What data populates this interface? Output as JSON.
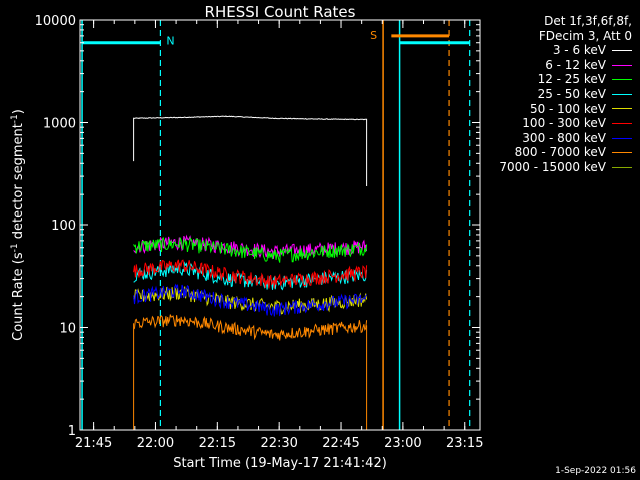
{
  "chart_data": {
    "type": "line",
    "title": "RHESSI Count Rates",
    "xlabel": "Start Time (19-May-17 21:41:42)",
    "ylabel_main": "Count Rate (s",
    "ylabel_sup1": "-1",
    "ylabel_mid": " detector segment",
    "ylabel_sup2": "-1",
    "ylabel_end": ")",
    "y_scale": "log",
    "ylim": [
      1,
      10000
    ],
    "yticks": [
      {
        "value": 1,
        "label": "1"
      },
      {
        "value": 10,
        "label": "10"
      },
      {
        "value": 100,
        "label": "100"
      },
      {
        "value": 1000,
        "label": "1000"
      },
      {
        "value": 10000,
        "label": "10000"
      }
    ],
    "xlim_minutes": [
      0,
      97
    ],
    "xticks": [
      {
        "minute": 3.3,
        "label": "21:45"
      },
      {
        "minute": 18.3,
        "label": "22:00"
      },
      {
        "minute": 33.3,
        "label": "22:15"
      },
      {
        "minute": 48.3,
        "label": "22:30"
      },
      {
        "minute": 63.3,
        "label": "22:45"
      },
      {
        "minute": 78.3,
        "label": "23:00"
      },
      {
        "minute": 93.3,
        "label": "23:15"
      }
    ],
    "data_range_minutes": [
      13,
      69.5
    ],
    "series": [
      {
        "name": "3 - 6 keV",
        "color": "#ffffff",
        "values": [
          1100,
          1120,
          1150,
          1100,
          1080,
          1070
        ]
      },
      {
        "name": "6 - 12 keV",
        "color": "#ff00ff",
        "values": [
          62,
          68,
          62,
          55,
          58,
          62
        ]
      },
      {
        "name": "12 - 25 keV",
        "color": "#00ff00",
        "values": [
          62,
          66,
          58,
          50,
          55,
          60
        ]
      },
      {
        "name": "25 - 50 keV",
        "color": "#00ffff",
        "values": [
          33,
          38,
          30,
          27,
          30,
          33
        ]
      },
      {
        "name": "50 - 100 keV",
        "color": "#dddd00",
        "values": [
          20,
          22,
          18,
          16,
          17,
          19
        ]
      },
      {
        "name": "100 - 300 keV",
        "color": "#ff0000",
        "values": [
          36,
          41,
          33,
          28,
          31,
          35
        ]
      },
      {
        "name": "300 - 800 keV",
        "color": "#0000ff",
        "values": [
          20,
          23,
          18,
          15,
          17,
          19
        ]
      },
      {
        "name": "800 - 7000 keV",
        "color": "#ff8800",
        "values": [
          11,
          12,
          10,
          8.5,
          9.5,
          10.5
        ]
      },
      {
        "name": "7000 - 15000 keV",
        "color": "#88aa00",
        "values": [
          null,
          null,
          null,
          null,
          null,
          null
        ]
      }
    ],
    "annotations": {
      "night_label": "N",
      "saa_label": "S",
      "night_color": "#00ffff",
      "saa_color": "#ff8800",
      "night_lines_solid": [
        0.5,
        77.5
      ],
      "night_lines_dashed": [
        19.5,
        94.5
      ],
      "saa_lines_solid": [
        73.5
      ],
      "saa_lines_dashed": [
        89.5
      ],
      "night_bars": [
        [
          0.5,
          19.5
        ],
        [
          77.5,
          94.5
        ]
      ],
      "saa_bar": [
        75.5,
        89.5
      ],
      "night_bar_level": 6000,
      "saa_bar_level": 7000
    }
  },
  "legend": {
    "header_line1": "Det 1f,3f,6f,8f,",
    "header_line2": "FDecim 3, Att 0"
  },
  "timestamp": "1-Sep-2022 01:56"
}
